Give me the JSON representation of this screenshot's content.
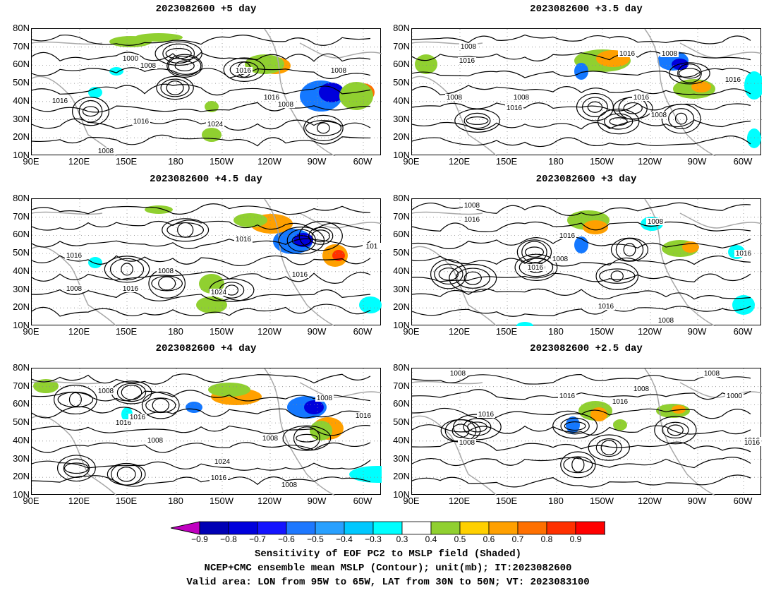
{
  "panels": [
    {
      "title": "2023082600 +5 day",
      "contour_labels": [
        "1000",
        "1008",
        "1016",
        "1016",
        "1016",
        "1008",
        "1008",
        "1024",
        "1008",
        "1016"
      ]
    },
    {
      "title": "2023082600 +3.5 day",
      "contour_labels": [
        "1008",
        "1016",
        "1016",
        "1008",
        "1008",
        "1008",
        "1016",
        "1016",
        "1016",
        "1008"
      ]
    },
    {
      "title": "2023082600 +4.5 day",
      "contour_labels": [
        "1016",
        "1008",
        "1016",
        "1008",
        "1016",
        "1024",
        "1016",
        "101"
      ]
    },
    {
      "title": "2023082600 +3 day",
      "contour_labels": [
        "1008",
        "1016",
        "1016",
        "1008",
        "1016",
        "1008",
        "1016",
        "1016",
        "1008"
      ]
    },
    {
      "title": "2023082600 +4 day",
      "contour_labels": [
        "1008",
        "1016",
        "1016",
        "1008",
        "1024",
        "1016",
        "1008",
        "1008",
        "1016",
        "1008"
      ]
    },
    {
      "title": "2023082600 +2.5 day",
      "contour_labels": [
        "1008",
        "1016",
        "1008",
        "1016",
        "1016",
        "1016",
        "1008",
        "1008",
        "1000",
        "1016"
      ]
    }
  ],
  "axes": {
    "lat_labels": [
      "80N",
      "70N",
      "60N",
      "50N",
      "40N",
      "30N",
      "20N",
      "10N"
    ],
    "lon_labels": [
      "90E",
      "120E",
      "150E",
      "180",
      "150W",
      "120W",
      "90W",
      "60W"
    ]
  },
  "colorbar": {
    "levels": [
      "-0.9",
      "-0.8",
      "-0.7",
      "-0.6",
      "-0.5",
      "-0.4",
      "-0.3",
      "0.3",
      "0.4",
      "0.5",
      "0.6",
      "0.7",
      "0.8",
      "0.9"
    ],
    "colors": [
      "#c000c0",
      "#0000b4",
      "#0000dc",
      "#1414ff",
      "#1e78ff",
      "#28a0ff",
      "#00c8ff",
      "#00ffff",
      "#ffffff",
      "#90d030",
      "#ffd000",
      "#ffa000",
      "#ff7000",
      "#ff3000",
      "#ff0000",
      "#ff90c8"
    ]
  },
  "captions": {
    "line1": "Sensitivity of EOF PC2 to MSLP field (Shaded)",
    "line2": "NCEP+CMC ensemble mean MSLP (Contour); unit(mb); IT:2023082600",
    "line3": "Valid area: LON from 95W to 65W, LAT from 30N to 50N; VT: 2023083100"
  }
}
